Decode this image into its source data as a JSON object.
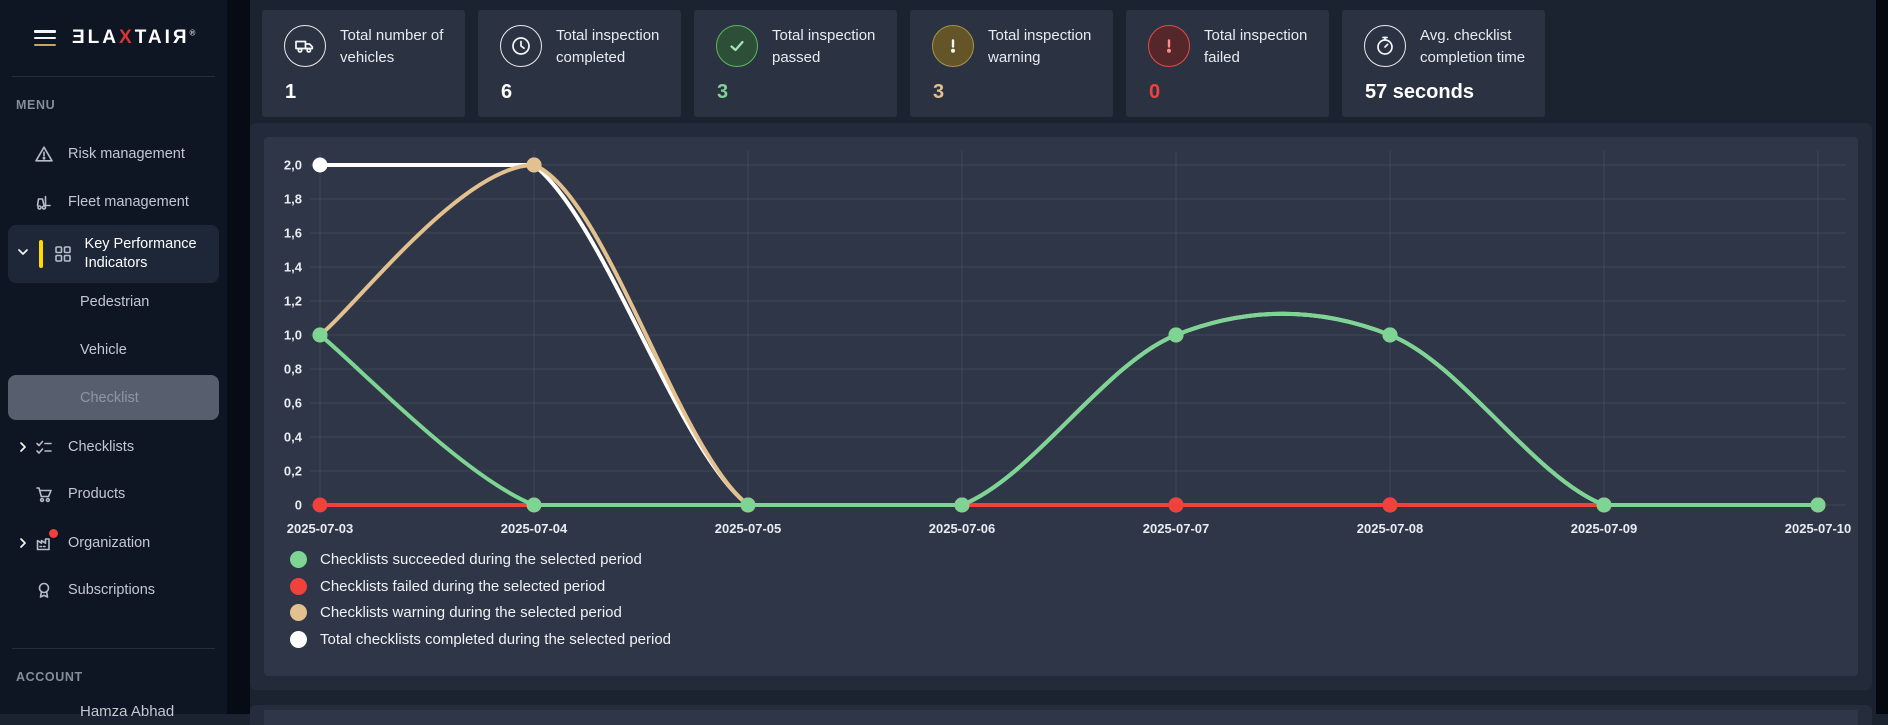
{
  "sidebar": {
    "logo": {
      "pre": "ƎLA",
      "accent": "X",
      "post": "TAI",
      "last": "Я",
      "registered": "®"
    },
    "menu_label": "MENU",
    "account_label": "ACCOUNT",
    "items": [
      {
        "label": "Risk management",
        "icon": "warning-triangle"
      },
      {
        "label": "Fleet management",
        "icon": "forklift"
      },
      {
        "label": "Key Performance Indicators",
        "icon": "grid",
        "expanded": true,
        "selected": true
      },
      {
        "label": "Pedestrian",
        "sub": true
      },
      {
        "label": "Vehicle",
        "sub": true
      },
      {
        "label": "Checklist",
        "sub": true,
        "active": true
      },
      {
        "label": "Checklists",
        "icon": "checklist",
        "chevron": "right"
      },
      {
        "label": "Products",
        "icon": "cart"
      },
      {
        "label": "Organization",
        "icon": "factory",
        "chevron": "right",
        "notification": true
      },
      {
        "label": "Subscriptions",
        "icon": "badge"
      }
    ],
    "user_name_partial": "Hamza Abhad",
    "accent_yellow": "#ffd900",
    "notification_red": "#f0413d"
  },
  "kpi_cards": [
    {
      "label": "Total number of vehicles",
      "value": "1",
      "icon": "truck-icon",
      "value_color": "#ffffff"
    },
    {
      "label": "Total inspection completed",
      "value": "6",
      "icon": "clock-icon",
      "value_color": "#ffffff"
    },
    {
      "label": "Total inspection passed",
      "value": "3",
      "icon": "check-circle-icon",
      "value_color": "#7ed492"
    },
    {
      "label": "Total inspection warning",
      "value": "3",
      "icon": "warning-circle-icon",
      "value_color": "#e2c18e"
    },
    {
      "label": "Total inspection failed",
      "value": "0",
      "icon": "error-circle-icon",
      "value_color": "#f0413d"
    },
    {
      "label": "Avg. checklist completion time",
      "value": "57 seconds",
      "icon": "stopwatch-icon",
      "value_color": "#ffffff"
    }
  ],
  "chart_data": {
    "type": "line",
    "x": [
      "2025-07-03",
      "2025-07-04",
      "2025-07-05",
      "2025-07-06",
      "2025-07-07",
      "2025-07-08",
      "2025-07-09",
      "2025-07-10"
    ],
    "series": [
      {
        "name": "Total checklists completed during the selected period",
        "color": "#ffffff",
        "values": [
          2,
          2,
          0,
          0,
          1,
          1,
          0,
          0
        ]
      },
      {
        "name": "Checklists warning during the selected period",
        "color": "#e2c18e",
        "values": [
          1,
          2,
          0,
          0,
          0,
          0,
          0,
          0
        ]
      },
      {
        "name": "Checklists failed during the selected period",
        "color": "#f0413d",
        "values": [
          0,
          0,
          0,
          0,
          0,
          0,
          0,
          0
        ]
      },
      {
        "name": "Checklists succeeded during the selected period",
        "color": "#7ed492",
        "values": [
          1,
          0,
          0,
          0,
          1,
          1,
          0,
          0
        ]
      }
    ],
    "legend": [
      {
        "label": "Checklists succeeded during the selected period",
        "color": "#7ed492"
      },
      {
        "label": "Checklists failed during the selected period",
        "color": "#f0413d"
      },
      {
        "label": "Checklists warning during the selected period",
        "color": "#e2c18e"
      },
      {
        "label": "Total checklists completed during the selected period",
        "color": "#ffffff"
      }
    ],
    "ylim": [
      0,
      2
    ],
    "ytick_labels": [
      "0",
      "0,2",
      "0,4",
      "0,6",
      "0,8",
      "1,0",
      "1,2",
      "1,4",
      "1,6",
      "1,8",
      "2,0"
    ],
    "grid": true,
    "legend_position": "bottom-left",
    "smoothing": "cubic"
  }
}
